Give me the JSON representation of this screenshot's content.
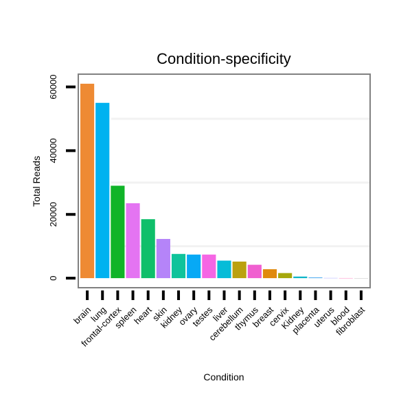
{
  "chart_data": {
    "type": "bar",
    "title": "Condition-specificity",
    "xlabel": "Condition",
    "ylabel": "Total Reads",
    "ylim": [
      -3000,
      64000
    ],
    "yticks": [
      0,
      20000,
      40000,
      60000
    ],
    "ytick_labels": [
      "0",
      "20000",
      "40000",
      "60000"
    ],
    "gridlines": [
      10000,
      30000,
      50000
    ],
    "categories": [
      "brain",
      "lung",
      "frontal-cortex",
      "spleen",
      "heart",
      "skin",
      "kidney",
      "ovary",
      "testes",
      "liver",
      "cerebellum",
      "thymus",
      "breast",
      "cervix",
      "Kidney",
      "placenta",
      "uterus",
      "blood",
      "fibroblast"
    ],
    "values": [
      61000,
      55000,
      29000,
      23500,
      18500,
      12300,
      7600,
      7400,
      7400,
      5500,
      5200,
      4200,
      2800,
      1600,
      500,
      250,
      60,
      30,
      10
    ],
    "colors": [
      "#ee8a33",
      "#00b2f0",
      "#10b428",
      "#e474f2",
      "#0fbf6a",
      "#b584f9",
      "#0fc39b",
      "#07a9f5",
      "#f566e4",
      "#06bcd8",
      "#bba10f",
      "#f05fd0",
      "#e08a0c",
      "#a6a80c",
      "#0fb5c8",
      "#5ab0f0",
      "#a9a9ff",
      "#ff80c0",
      "#c0c0c0"
    ]
  }
}
